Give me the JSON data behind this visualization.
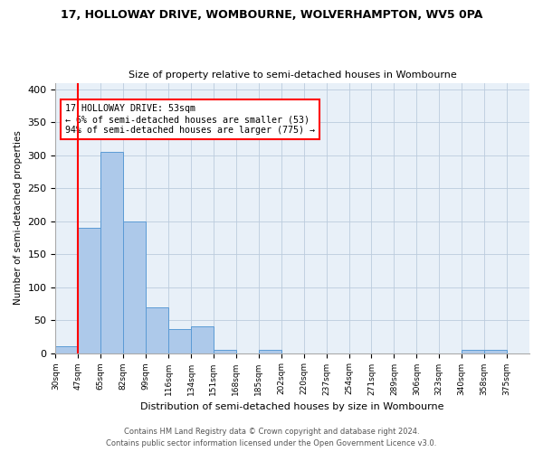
{
  "title1": "17, HOLLOWAY DRIVE, WOMBOURNE, WOLVERHAMPTON, WV5 0PA",
  "title2": "Size of property relative to semi-detached houses in Wombourne",
  "xlabel": "Distribution of semi-detached houses by size in Wombourne",
  "ylabel": "Number of semi-detached properties",
  "footer1": "Contains HM Land Registry data © Crown copyright and database right 2024.",
  "footer2": "Contains public sector information licensed under the Open Government Licence v3.0.",
  "bin_labels": [
    "30sqm",
    "47sqm",
    "65sqm",
    "82sqm",
    "99sqm",
    "116sqm",
    "134sqm",
    "151sqm",
    "168sqm",
    "185sqm",
    "202sqm",
    "220sqm",
    "237sqm",
    "254sqm",
    "271sqm",
    "289sqm",
    "306sqm",
    "323sqm",
    "340sqm",
    "358sqm",
    "375sqm"
  ],
  "bar_heights": [
    10,
    190,
    305,
    200,
    70,
    37,
    40,
    5,
    0,
    5,
    0,
    0,
    0,
    0,
    0,
    0,
    0,
    0,
    5,
    5,
    0
  ],
  "bar_color": "#adc9ea",
  "bar_edge_color": "#5b9bd5",
  "red_line_x": 1.0,
  "annotation_text": "17 HOLLOWAY DRIVE: 53sqm\n← 6% of semi-detached houses are smaller (53)\n94% of semi-detached houses are larger (775) →",
  "annotation_box_color": "white",
  "annotation_border_color": "red",
  "ylim": [
    0,
    410
  ],
  "yticks": [
    0,
    50,
    100,
    150,
    200,
    250,
    300,
    350,
    400
  ],
  "background_color": "white",
  "ax_background": "#e8f0f8",
  "grid_color": "#bbccdd"
}
